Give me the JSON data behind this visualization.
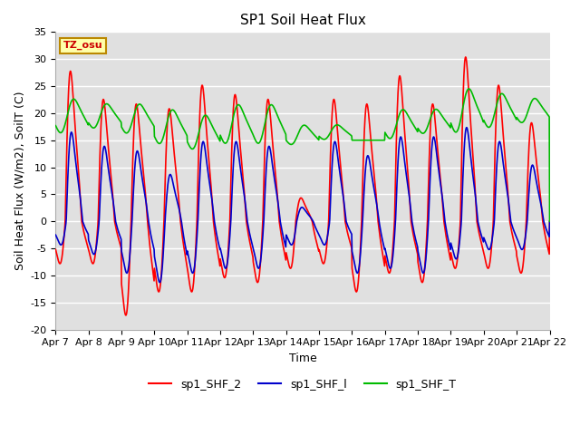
{
  "title": "SP1 Soil Heat Flux",
  "xlabel": "Time",
  "ylabel": "Soil Heat Flux (W/m2), SoilT (C)",
  "ylim": [
    -20,
    35
  ],
  "x_tick_labels": [
    "Apr 7",
    "Apr 8",
    "Apr 9",
    "Apr 10",
    "Apr 11",
    "Apr 12",
    "Apr 13",
    "Apr 14",
    "Apr 15",
    "Apr 16",
    "Apr 17",
    "Apr 18",
    "Apr 19",
    "Apr 20",
    "Apr 21",
    "Apr 22"
  ],
  "axes_facecolor": "#e0e0e0",
  "fig_facecolor": "#ffffff",
  "grid_color": "#ffffff",
  "line_colors": {
    "sp1_SHF_2": "#ff0000",
    "sp1_SHF_l": "#0000cc",
    "sp1_SHF_T": "#00bb00"
  },
  "line_widths": {
    "sp1_SHF_2": 1.2,
    "sp1_SHF_l": 1.2,
    "sp1_SHF_T": 1.2
  },
  "tz_label": "TZ_osu",
  "tz_box_facecolor": "#ffffaa",
  "tz_box_edgecolor": "#bb8800",
  "title_fontsize": 11,
  "label_fontsize": 9,
  "tick_fontsize": 8,
  "legend_fontsize": 9
}
